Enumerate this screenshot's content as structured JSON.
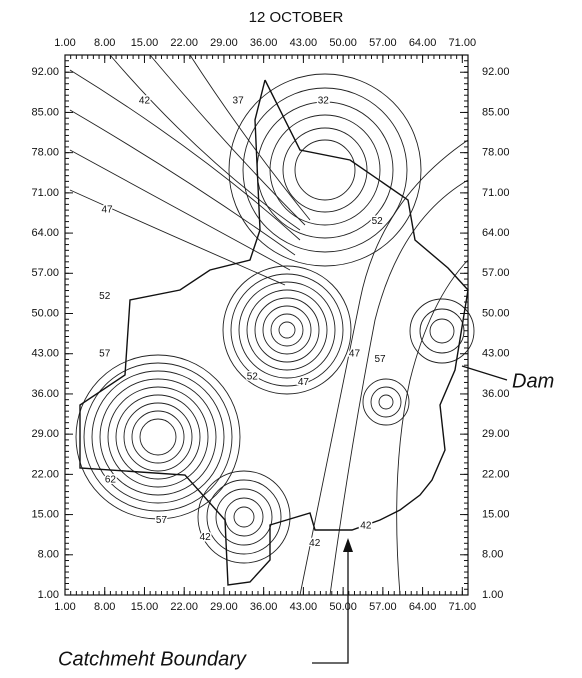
{
  "chart_data": {
    "type": "contour",
    "title": "12 OCTOBER",
    "xlim": [
      1,
      72
    ],
    "ylim": [
      1,
      95
    ],
    "xticks": [
      {
        "value": 1,
        "label": "1.00"
      },
      {
        "value": 8,
        "label": "8.00"
      },
      {
        "value": 15,
        "label": "15.00"
      },
      {
        "value": 22,
        "label": "22.00"
      },
      {
        "value": 29,
        "label": "29.00"
      },
      {
        "value": 36,
        "label": "36.00"
      },
      {
        "value": 43,
        "label": "43.00"
      },
      {
        "value": 50,
        "label": "50.00"
      },
      {
        "value": 57,
        "label": "57.00"
      },
      {
        "value": 64,
        "label": "64.00"
      },
      {
        "value": 71,
        "label": "71.00"
      }
    ],
    "yticks": [
      {
        "value": 1,
        "label": "1.00"
      },
      {
        "value": 8,
        "label": "8.00"
      },
      {
        "value": 15,
        "label": "15.00"
      },
      {
        "value": 22,
        "label": "22.00"
      },
      {
        "value": 29,
        "label": "29.00"
      },
      {
        "value": 36,
        "label": "36.00"
      },
      {
        "value": 43,
        "label": "43.00"
      },
      {
        "value": 50,
        "label": "50.00"
      },
      {
        "value": 57,
        "label": "57.00"
      },
      {
        "value": 64,
        "label": "64.00"
      },
      {
        "value": 71,
        "label": "71.00"
      },
      {
        "value": 78,
        "label": "78.00"
      },
      {
        "value": 85,
        "label": "85.00"
      },
      {
        "value": 92,
        "label": "92.00"
      }
    ],
    "contour_labels": [
      {
        "value": 42,
        "x": 15,
        "y": 87
      },
      {
        "value": 37,
        "x": 31.5,
        "y": 87
      },
      {
        "value": 32,
        "x": 46.5,
        "y": 87
      },
      {
        "value": 47,
        "x": 8.4,
        "y": 68
      },
      {
        "value": 52,
        "x": 8,
        "y": 53
      },
      {
        "value": 57,
        "x": 8,
        "y": 43
      },
      {
        "value": 52,
        "x": 34,
        "y": 39
      },
      {
        "value": 47,
        "x": 43,
        "y": 38
      },
      {
        "value": 47,
        "x": 52,
        "y": 43
      },
      {
        "value": 57,
        "x": 56.5,
        "y": 42
      },
      {
        "value": 42,
        "x": 54,
        "y": 13
      },
      {
        "value": 42,
        "x": 45,
        "y": 10
      },
      {
        "value": 42,
        "x": 25.7,
        "y": 11
      },
      {
        "value": 57,
        "x": 18,
        "y": 14
      },
      {
        "value": 62,
        "x": 9,
        "y": 21
      },
      {
        "value": 52,
        "x": 56,
        "y": 66
      }
    ],
    "annotations": [
      "Dam",
      "Catchmeht Boundary"
    ]
  }
}
